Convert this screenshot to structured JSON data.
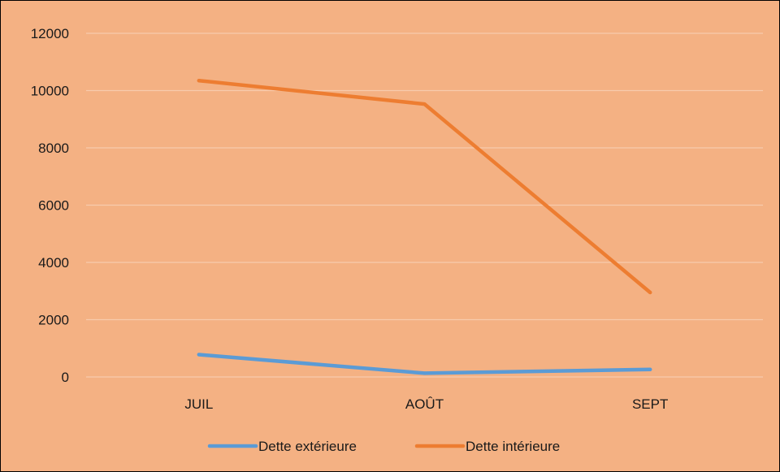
{
  "chart_data": {
    "type": "line",
    "title": "",
    "xlabel": "",
    "ylabel": "",
    "categories": [
      "JUIL",
      "AOÛT",
      "SEPT"
    ],
    "series": [
      {
        "name": "Dette extérieure",
        "values": [
          780,
          130,
          260
        ],
        "color": "#5B9BD5"
      },
      {
        "name": "Dette intérieure",
        "values": [
          10350,
          9530,
          2950
        ],
        "color": "#ED7D31"
      }
    ],
    "ylim": [
      0,
      12000
    ],
    "yticks": [
      "0",
      "2000",
      "4000",
      "6000",
      "8000",
      "10000",
      "12000"
    ],
    "grid": true,
    "legend_position": "bottom",
    "background_color": "#F4B183",
    "gridline_color": "#F8CBAD"
  }
}
